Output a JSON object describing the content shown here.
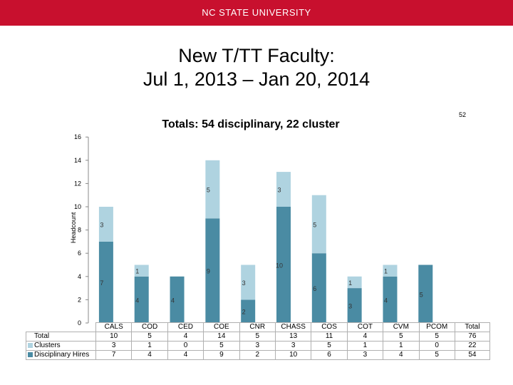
{
  "header": {
    "brand": "NC STATE UNIVERSITY"
  },
  "slide": {
    "title_line1": "New T/TT Faculty:",
    "title_line2": "Jul 1, 2013 – Jan 20, 2014",
    "page_number": "52"
  },
  "colors": {
    "banner": "#c8102e",
    "disciplinary": "#4a8ba3",
    "clusters": "#afd3e0"
  },
  "chart_data": {
    "type": "bar",
    "stacked": true,
    "title": "Totals: 54 disciplinary, 22 cluster",
    "xlabel": "",
    "ylabel": "Headcount",
    "ylim": [
      0,
      16
    ],
    "yticks": [
      0,
      2,
      4,
      6,
      8,
      10,
      12,
      14,
      16
    ],
    "categories": [
      "CALS",
      "COD",
      "CED",
      "COE",
      "CNR",
      "CHASS",
      "COS",
      "COT",
      "CVM",
      "PCOM"
    ],
    "series": [
      {
        "name": "Disciplinary Hires",
        "values": [
          7,
          4,
          4,
          9,
          2,
          10,
          6,
          3,
          4,
          5
        ]
      },
      {
        "name": "Clusters",
        "values": [
          3,
          1,
          0,
          5,
          3,
          3,
          5,
          1,
          1,
          0
        ]
      }
    ],
    "cluster_labels": [
      "3",
      "1",
      "",
      "5",
      "3",
      "3",
      "5",
      "1",
      "1",
      ""
    ],
    "table": {
      "rows": [
        {
          "name": "Total",
          "values": [
            "10",
            "5",
            "4",
            "14",
            "5",
            "13",
            "11",
            "4",
            "5",
            "5"
          ],
          "total": "76"
        },
        {
          "name": "Clusters",
          "values": [
            "3",
            "1",
            "0",
            "5",
            "3",
            "3",
            "5",
            "1",
            "1",
            "0"
          ],
          "total": "22"
        },
        {
          "name": "Disciplinary Hires",
          "values": [
            "7",
            "4",
            "4",
            "9",
            "2",
            "10",
            "6",
            "3",
            "4",
            "5"
          ],
          "total": "54"
        }
      ],
      "total_header": "Total"
    }
  }
}
